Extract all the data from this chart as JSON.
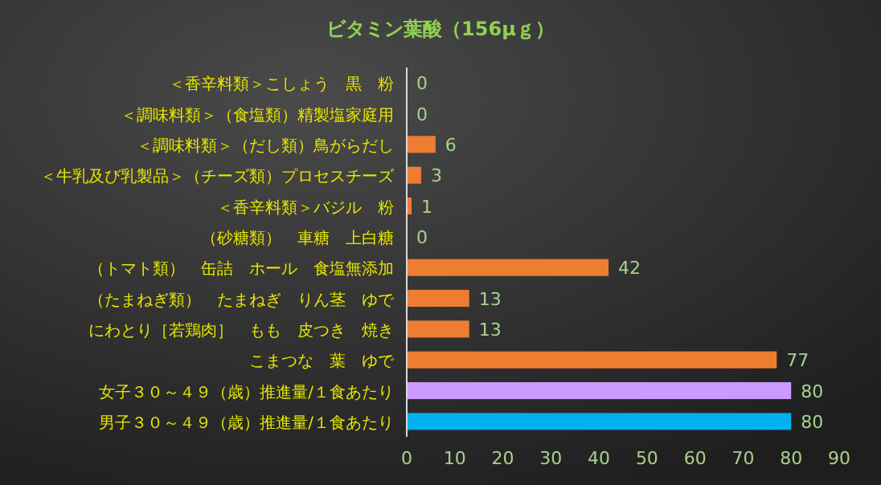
{
  "chart_data": {
    "type": "bar",
    "orientation": "horizontal",
    "title": "ビタミン葉酸（156μｇ）",
    "categories": [
      "＜香辛料類＞こしょう　黒　粉",
      "＜調味料類＞（食塩類）精製塩家庭用",
      "＜調味料類＞（だし類）鳥がらだし",
      "＜牛乳及び乳製品＞（チーズ類）プロセスチーズ",
      "＜香辛料類＞バジル　粉",
      "（砂糖類）　車糖　上白糖",
      "（トマト類）　缶詰　ホール　食塩無添加",
      "（たまねぎ類）　たまねぎ　りん茎　ゆで",
      "にわとり［若鶏肉］　もも　皮つき　焼き",
      "こまつな　葉　ゆで",
      "女子３０～４９（歳）推進量/１食あたり",
      "男子３０～４９（歳）推進量/１食あたり"
    ],
    "values": [
      0,
      0,
      6,
      3,
      1,
      0,
      42,
      13,
      13,
      77,
      80,
      80
    ],
    "colors": [
      "#ed7d31",
      "#ed7d31",
      "#ed7d31",
      "#ed7d31",
      "#ed7d31",
      "#ed7d31",
      "#ed7d31",
      "#ed7d31",
      "#ed7d31",
      "#ed7d31",
      "#cc99ff",
      "#00b0f0"
    ],
    "xlim": [
      0,
      90
    ],
    "xticks": [
      0,
      10,
      20,
      30,
      40,
      50,
      60,
      70,
      80,
      90
    ],
    "data_labels": true,
    "grid": false
  }
}
